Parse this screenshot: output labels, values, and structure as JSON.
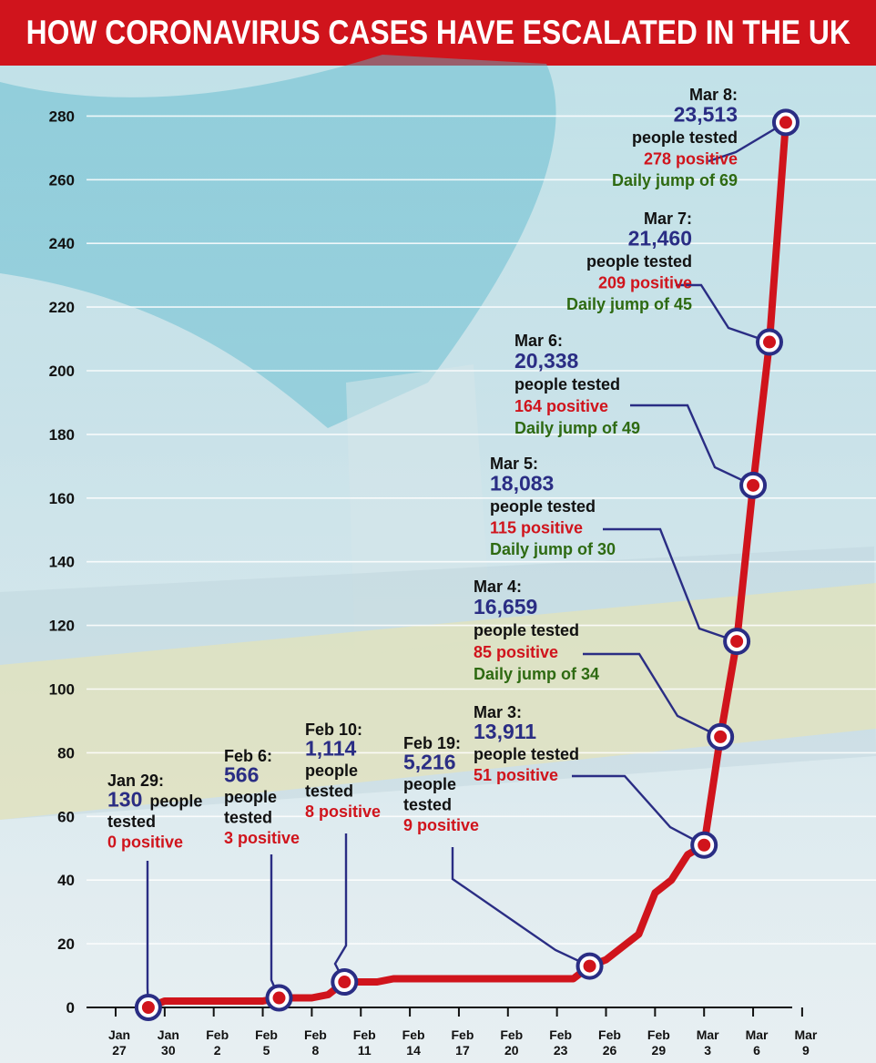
{
  "chart_data": {
    "type": "line",
    "title": "HOW CORONAVIRUS CASES HAVE ESCALATED IN THE UK",
    "xlabel": "",
    "ylabel": "",
    "ylim": [
      0,
      280
    ],
    "yticks": [
      0,
      20,
      40,
      60,
      80,
      100,
      120,
      140,
      160,
      180,
      200,
      220,
      240,
      260,
      280
    ],
    "xticks": [
      {
        "line1": "Jan",
        "line2": "27"
      },
      {
        "line1": "Jan",
        "line2": "30"
      },
      {
        "line1": "Feb",
        "line2": "2"
      },
      {
        "line1": "Feb",
        "line2": "5"
      },
      {
        "line1": "Feb",
        "line2": "8"
      },
      {
        "line1": "Feb",
        "line2": "11"
      },
      {
        "line1": "Feb",
        "line2": "14"
      },
      {
        "line1": "Feb",
        "line2": "17"
      },
      {
        "line1": "Feb",
        "line2": "20"
      },
      {
        "line1": "Feb",
        "line2": "23"
      },
      {
        "line1": "Feb",
        "line2": "26"
      },
      {
        "line1": "Feb",
        "line2": "29"
      },
      {
        "line1": "Mar",
        "line2": "3"
      },
      {
        "line1": "Mar",
        "line2": "6"
      },
      {
        "line1": "Mar",
        "line2": "9"
      }
    ],
    "series": [
      {
        "color": "#d0141c",
        "points": [
          {
            "x": "Jan 29",
            "y": 0
          },
          {
            "x": "Jan 30",
            "y": 2
          },
          {
            "x": "Jan 31",
            "y": 2
          },
          {
            "x": "Feb 1",
            "y": 2
          },
          {
            "x": "Feb 2",
            "y": 2
          },
          {
            "x": "Feb 3",
            "y": 2
          },
          {
            "x": "Feb 4",
            "y": 2
          },
          {
            "x": "Feb 5",
            "y": 2
          },
          {
            "x": "Feb 6",
            "y": 3
          },
          {
            "x": "Feb 7",
            "y": 3
          },
          {
            "x": "Feb 8",
            "y": 3
          },
          {
            "x": "Feb 9",
            "y": 4
          },
          {
            "x": "Feb 10",
            "y": 8
          },
          {
            "x": "Feb 11",
            "y": 8
          },
          {
            "x": "Feb 12",
            "y": 8
          },
          {
            "x": "Feb 13",
            "y": 9
          },
          {
            "x": "Feb 14",
            "y": 9
          },
          {
            "x": "Feb 15",
            "y": 9
          },
          {
            "x": "Feb 16",
            "y": 9
          },
          {
            "x": "Feb 17",
            "y": 9
          },
          {
            "x": "Feb 18",
            "y": 9
          },
          {
            "x": "Feb 19",
            "y": 9
          },
          {
            "x": "Feb 20",
            "y": 9
          },
          {
            "x": "Feb 21",
            "y": 9
          },
          {
            "x": "Feb 22",
            "y": 9
          },
          {
            "x": "Feb 23",
            "y": 9
          },
          {
            "x": "Feb 24",
            "y": 9
          },
          {
            "x": "Feb 25",
            "y": 13
          },
          {
            "x": "Feb 26",
            "y": 15
          },
          {
            "x": "Feb 27",
            "y": 19
          },
          {
            "x": "Feb 28",
            "y": 23
          },
          {
            "x": "Feb 29",
            "y": 36
          },
          {
            "x": "Mar 1",
            "y": 40
          },
          {
            "x": "Mar 2",
            "y": 48
          },
          {
            "x": "Mar 3",
            "y": 51
          },
          {
            "x": "Mar 4",
            "y": 85
          },
          {
            "x": "Mar 5",
            "y": 115
          },
          {
            "x": "Mar 6",
            "y": 164
          },
          {
            "x": "Mar 7",
            "y": 209
          },
          {
            "x": "Mar 8",
            "y": 278
          }
        ]
      }
    ],
    "annotations": [
      {
        "date": "Jan 29:",
        "tested": "130",
        "people": "people",
        "tested_word": "tested",
        "positive": "0 positive",
        "point": "Jan 29"
      },
      {
        "date": "Feb 6:",
        "tested": "566",
        "people": "people",
        "tested_word": "tested",
        "positive": "3 positive",
        "point": "Feb 6"
      },
      {
        "date": "Feb 10:",
        "tested": "1,114",
        "people": "people",
        "tested_word": "tested",
        "positive": "8 positive",
        "point": "Feb 10"
      },
      {
        "date": "Feb 19:",
        "tested": "5,216",
        "people": "people",
        "tested_word": "tested",
        "positive": "9 positive",
        "point": "Feb 25"
      },
      {
        "date": "Mar 3:",
        "tested": "13,911",
        "people_tested": "people tested",
        "positive": "51 positive",
        "point": "Mar 3"
      },
      {
        "date": "Mar 4:",
        "tested": "16,659",
        "people_tested": "people tested",
        "positive": "85 positive",
        "jump": "Daily jump of 34",
        "point": "Mar 4"
      },
      {
        "date": "Mar 5:",
        "tested": "18,083",
        "people_tested": "people tested",
        "positive": "115 positive",
        "jump": "Daily jump of 30",
        "point": "Mar 5"
      },
      {
        "date": "Mar 6:",
        "tested": "20,338",
        "people_tested": "people tested",
        "positive": "164 positive",
        "jump": "Daily jump of 49",
        "point": "Mar 6"
      },
      {
        "date": "Mar 7:",
        "tested": "21,460",
        "people_tested": "people tested",
        "positive": "209 positive",
        "jump": "Daily jump of 45",
        "point": "Mar 7"
      },
      {
        "date": "Mar 8:",
        "tested": "23,513",
        "people_tested": "people tested",
        "positive": "278 positive",
        "jump": "Daily jump of 69",
        "point": "Mar 8"
      }
    ],
    "grid": true,
    "legend": "none"
  },
  "colors": {
    "title_bg": "#d0141c",
    "line": "#d0141c",
    "marker_ring": "#2a2d84",
    "tested": "#2a2d84",
    "positive": "#d0141c",
    "jump": "#2e6a12"
  }
}
